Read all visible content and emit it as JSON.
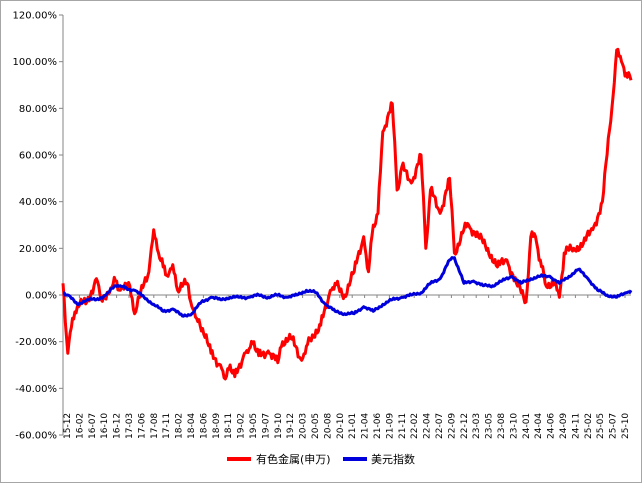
{
  "chart_data": {
    "type": "line",
    "title": "",
    "xlabel": "",
    "ylabel": "",
    "ylim": [
      -0.6,
      1.2
    ],
    "yticks": [
      "120.00%",
      "100.00%",
      "80.00%",
      "60.00%",
      "40.00%",
      "20.00%",
      "0.00%",
      "-20.00%",
      "-40.00%",
      "-60.00%"
    ],
    "ytick_values": [
      1.2,
      1.0,
      0.8,
      0.6,
      0.4,
      0.2,
      0.0,
      -0.2,
      -0.4,
      -0.6
    ],
    "x_tick_labels": [
      "15-12",
      "16-02",
      "16-07",
      "16-10",
      "16-12",
      "17-03",
      "17-06",
      "17-08",
      "17-11",
      "18-02",
      "18-04",
      "18-06",
      "18-09",
      "18-11",
      "19-02",
      "19-05",
      "19-07",
      "19-10",
      "19-12",
      "20-03",
      "20-05",
      "20-08",
      "20-10",
      "21-01",
      "21-04",
      "21-06",
      "21-09",
      "21-11",
      "22-02",
      "22-04",
      "22-07",
      "22-09",
      "22-12",
      "23-03",
      "23-05",
      "23-08",
      "23-10",
      "24-01",
      "24-04",
      "24-06",
      "24-09",
      "24-11",
      "25-02",
      "25-05",
      "25-07",
      "25-10"
    ],
    "grid": false,
    "legend_position": "bottom",
    "series": [
      {
        "name": "有色金属(申万)",
        "color": "#ff0000",
        "x": [
          "15-12",
          "16-01",
          "16-02",
          "16-03",
          "16-05",
          "16-07",
          "16-08",
          "16-10",
          "16-11",
          "16-12",
          "17-02",
          "17-03",
          "17-05",
          "17-06",
          "17-07",
          "17-08",
          "17-09",
          "17-10",
          "17-11",
          "17-12",
          "18-02",
          "18-03",
          "18-04",
          "18-06",
          "18-07",
          "18-09",
          "18-10",
          "18-11",
          "18-12",
          "19-02",
          "19-03",
          "19-04",
          "19-05",
          "19-07",
          "19-09",
          "19-10",
          "19-12",
          "20-02",
          "20-03",
          "20-05",
          "20-06",
          "20-08",
          "20-09",
          "20-11",
          "21-01",
          "21-03",
          "21-04",
          "21-05",
          "21-06",
          "21-07",
          "21-09",
          "21-10",
          "21-11",
          "22-01",
          "22-03",
          "22-04",
          "22-05",
          "22-07",
          "22-09",
          "22-10",
          "22-12",
          "23-01",
          "23-03",
          "23-05",
          "23-07",
          "23-09",
          "23-11",
          "24-01",
          "24-02",
          "24-03",
          "24-04",
          "24-05",
          "24-07",
          "24-08",
          "24-09",
          "24-11",
          "25-01",
          "25-03",
          "25-05",
          "25-07",
          "25-08",
          "25-09",
          "25-10",
          "25-11"
        ],
        "values": [
          0.05,
          -0.25,
          -0.1,
          -0.05,
          -0.03,
          0.07,
          -0.02,
          0.03,
          0.06,
          0.02,
          0.04,
          -0.08,
          0.05,
          0.1,
          0.28,
          0.18,
          0.12,
          0.08,
          0.13,
          0.02,
          0.05,
          -0.05,
          -0.1,
          -0.17,
          -0.25,
          -0.3,
          -0.36,
          -0.3,
          -0.35,
          -0.25,
          -0.23,
          -0.2,
          -0.26,
          -0.24,
          -0.29,
          -0.2,
          -0.19,
          -0.28,
          -0.22,
          -0.15,
          -0.13,
          0.02,
          0.05,
          0.0,
          0.1,
          0.25,
          0.1,
          0.3,
          0.35,
          0.7,
          0.82,
          0.45,
          0.55,
          0.48,
          0.6,
          0.2,
          0.45,
          0.35,
          0.5,
          0.18,
          0.28,
          0.3,
          0.25,
          0.2,
          0.12,
          0.15,
          0.05,
          -0.03,
          0.25,
          0.25,
          0.15,
          0.05,
          0.05,
          -0.01,
          0.18,
          0.2,
          0.22,
          0.28,
          0.4,
          0.8,
          1.05,
          1.0,
          0.95,
          0.92
        ]
      },
      {
        "name": "美元指数",
        "color": "#0000dd",
        "x": [
          "15-12",
          "16-01",
          "16-03",
          "16-05",
          "16-07",
          "16-09",
          "16-11",
          "16-12",
          "17-01",
          "17-03",
          "17-05",
          "17-07",
          "17-09",
          "17-11",
          "18-01",
          "18-03",
          "18-05",
          "18-07",
          "18-09",
          "18-11",
          "19-01",
          "19-03",
          "19-05",
          "19-07",
          "19-09",
          "19-11",
          "20-01",
          "20-03",
          "20-05",
          "20-07",
          "20-09",
          "20-11",
          "21-01",
          "21-03",
          "21-05",
          "21-07",
          "21-09",
          "21-11",
          "22-01",
          "22-03",
          "22-05",
          "22-07",
          "22-09",
          "22-10",
          "22-12",
          "23-02",
          "23-04",
          "23-06",
          "23-08",
          "23-10",
          "23-12",
          "24-02",
          "24-04",
          "24-06",
          "24-08",
          "24-10",
          "24-12",
          "25-02",
          "25-04",
          "25-06",
          "25-08",
          "25-10",
          "25-11"
        ],
        "values": [
          0.01,
          0.0,
          -0.04,
          -0.02,
          -0.02,
          0.0,
          0.04,
          0.04,
          0.03,
          0.02,
          -0.01,
          -0.04,
          -0.07,
          -0.06,
          -0.09,
          -0.08,
          -0.03,
          -0.01,
          -0.02,
          -0.01,
          -0.01,
          -0.01,
          0.0,
          -0.01,
          0.0,
          -0.01,
          0.0,
          0.02,
          0.01,
          -0.04,
          -0.07,
          -0.08,
          -0.08,
          -0.05,
          -0.07,
          -0.04,
          -0.02,
          -0.01,
          0.0,
          0.01,
          0.05,
          0.07,
          0.15,
          0.16,
          0.05,
          0.06,
          0.04,
          0.04,
          0.06,
          0.08,
          0.05,
          0.07,
          0.08,
          0.08,
          0.05,
          0.08,
          0.11,
          0.07,
          0.02,
          0.0,
          -0.01,
          0.01,
          0.02
        ]
      }
    ]
  }
}
